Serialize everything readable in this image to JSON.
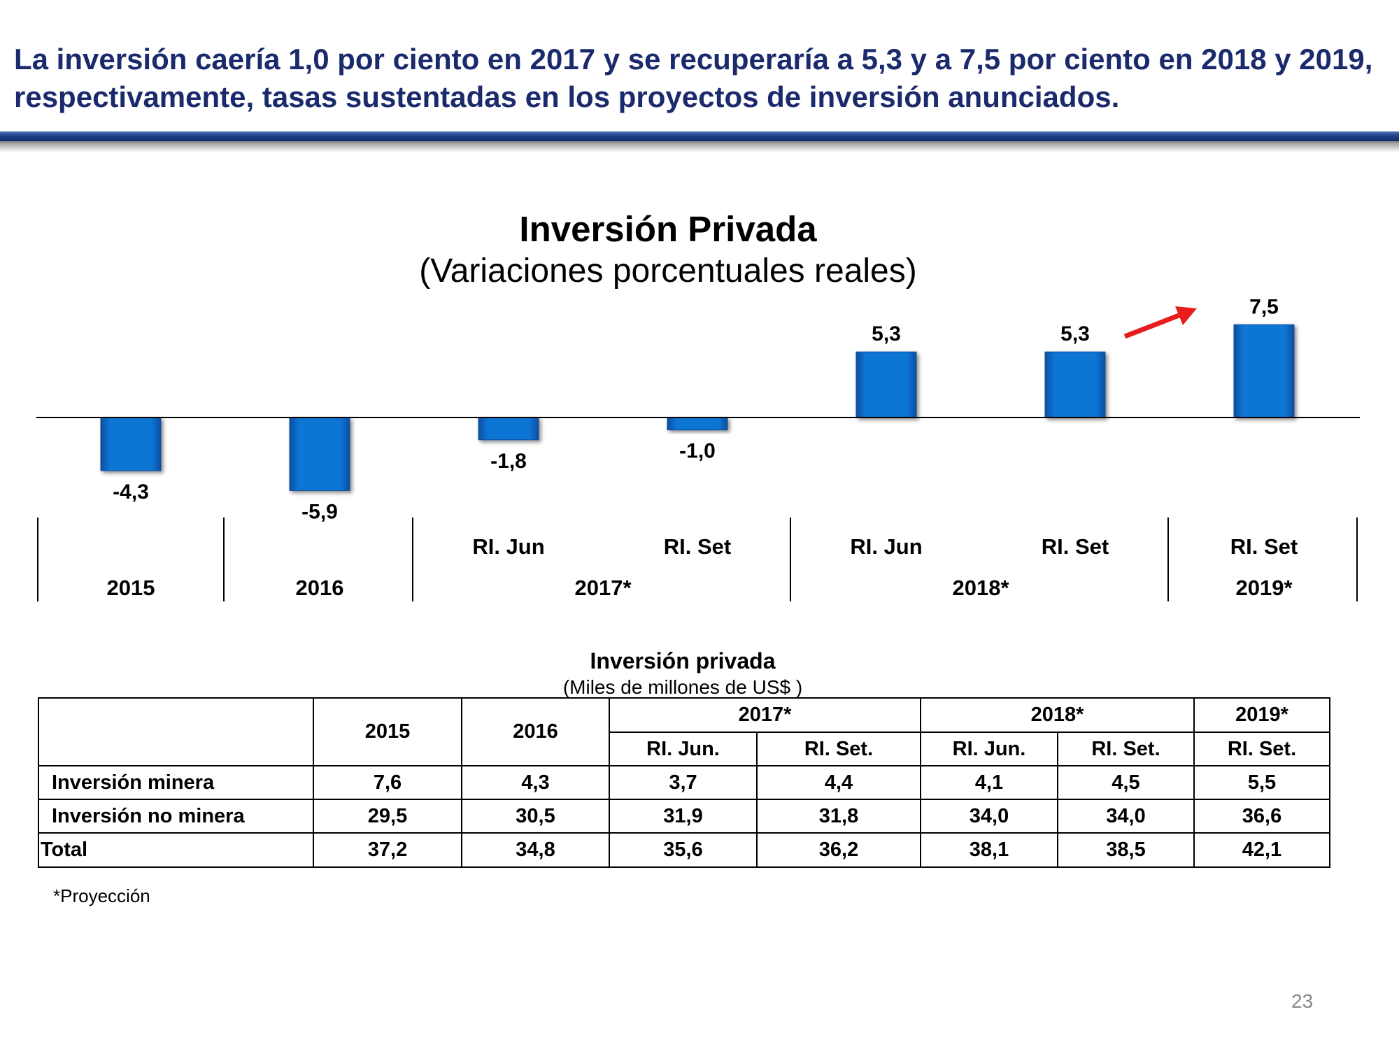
{
  "headline": "La inversión caería 1,0 por ciento en 2017 y se recuperaría a 5,3 y a 7,5 por ciento en 2018 y 2019, respectivamente, tasas sustentadas en los proyectos de inversión anunciados.",
  "colors": {
    "headline": "#1a2a6c",
    "bar": "#0a74d4",
    "arrow": "#e81c1c",
    "rule": "#1f3f86"
  },
  "chart_data": {
    "type": "bar",
    "title": "Inversión Privada",
    "subtitle": "(Variaciones porcentuales reales)",
    "categories": [
      "2015",
      "2016",
      "RI. Jun 2017*",
      "RI. Set 2017*",
      "RI. Jun 2018*",
      "RI. Set 2018*",
      "RI. Set 2019*"
    ],
    "values": [
      -4.3,
      -5.9,
      -1.8,
      -1.0,
      5.3,
      5.3,
      7.5
    ],
    "data_labels": [
      "-4,3",
      "-5,9",
      "-1,8",
      "-1,0",
      "5,3",
      "5,3",
      "7,5"
    ],
    "sub_labels": [
      "",
      "",
      "RI. Jun",
      "RI. Set",
      "RI. Jun",
      "RI. Set",
      "RI. Set"
    ],
    "year_groups": [
      {
        "label": "2015",
        "span": 1
      },
      {
        "label": "2016",
        "span": 1
      },
      {
        "label": "2017*",
        "span": 2
      },
      {
        "label": "2018*",
        "span": 2
      },
      {
        "label": "2019*",
        "span": 1
      }
    ],
    "ylim": [
      -6.5,
      8.5
    ],
    "grid": false,
    "annotation": "red-arrow-up-right"
  },
  "table": {
    "title": "Inversión privada",
    "units": "(Miles de millones de US$ )",
    "year_headers": [
      "2015",
      "2016",
      "2017*",
      "2018*",
      "2019*"
    ],
    "sub_headers": [
      "RI. Jun.",
      "RI. Set.",
      "RI. Jun.",
      "RI. Set.",
      "RI. Set."
    ],
    "rows": [
      {
        "label": "Inversión minera",
        "values": [
          "7,6",
          "4,3",
          "3,7",
          "4,4",
          "4,1",
          "4,5",
          "5,5"
        ]
      },
      {
        "label": "Inversión no minera",
        "values": [
          "29,5",
          "30,5",
          "31,9",
          "31,8",
          "34,0",
          "34,0",
          "36,6"
        ]
      },
      {
        "label": "Total",
        "values": [
          "37,2",
          "34,8",
          "35,6",
          "36,2",
          "38,1",
          "38,5",
          "42,1"
        ]
      }
    ]
  },
  "footnote": "*Proyección",
  "page_number": "23"
}
